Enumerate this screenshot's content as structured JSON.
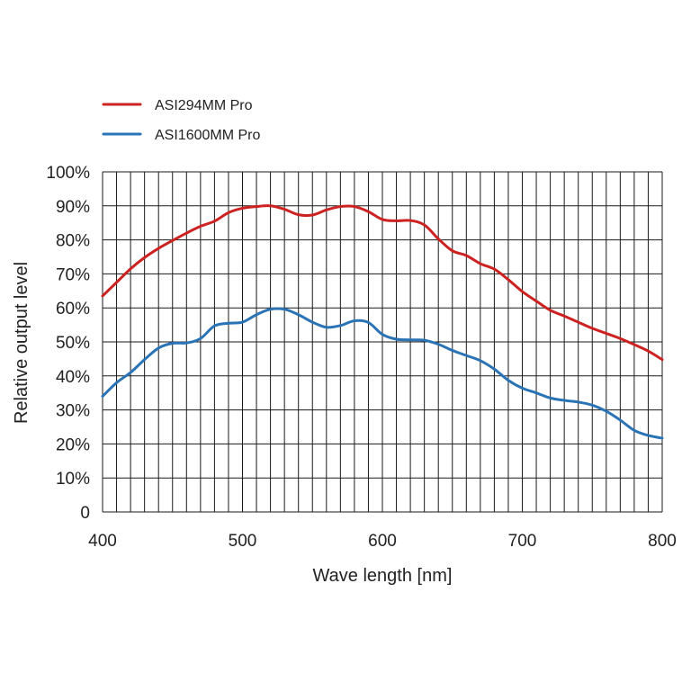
{
  "chart_data": {
    "type": "line",
    "xlabel": "Wave length [nm]",
    "ylabel": "Relative output level",
    "xlim": [
      400,
      800
    ],
    "ylim": [
      0,
      100
    ],
    "x_ticks": [
      "400",
      "500",
      "600",
      "700",
      "800"
    ],
    "y_ticks": [
      "0",
      "10%",
      "20%",
      "30%",
      "40%",
      "50%",
      "60%",
      "70%",
      "80%",
      "90%",
      "100%"
    ],
    "grid": true,
    "legend_position": "top-left",
    "series": [
      {
        "name": "ASI294MM Pro",
        "color": "#cc2222",
        "points": [
          [
            400,
            63.5
          ],
          [
            410,
            67.5
          ],
          [
            420,
            71.5
          ],
          [
            430,
            74.8
          ],
          [
            440,
            77.5
          ],
          [
            450,
            79.8
          ],
          [
            460,
            82
          ],
          [
            470,
            84
          ],
          [
            480,
            85.5
          ],
          [
            490,
            88
          ],
          [
            500,
            89.3
          ],
          [
            510,
            89.8
          ],
          [
            520,
            90
          ],
          [
            530,
            89
          ],
          [
            540,
            87.4
          ],
          [
            550,
            87.3
          ],
          [
            560,
            88.8
          ],
          [
            570,
            89.8
          ],
          [
            580,
            89.8
          ],
          [
            590,
            88.3
          ],
          [
            600,
            86
          ],
          [
            610,
            85.6
          ],
          [
            620,
            85.7
          ],
          [
            630,
            84.4
          ],
          [
            640,
            80.3
          ],
          [
            650,
            76.8
          ],
          [
            660,
            75.4
          ],
          [
            670,
            73
          ],
          [
            680,
            71.4
          ],
          [
            690,
            68.3
          ],
          [
            700,
            64.8
          ],
          [
            710,
            62
          ],
          [
            720,
            59.3
          ],
          [
            730,
            57.6
          ],
          [
            740,
            55.8
          ],
          [
            750,
            54
          ],
          [
            760,
            52.5
          ],
          [
            770,
            51
          ],
          [
            780,
            49.2
          ],
          [
            790,
            47.3
          ],
          [
            800,
            44.8
          ]
        ]
      },
      {
        "name": "ASI1600MM Pro",
        "color": "#2a73b5",
        "points": [
          [
            400,
            34
          ],
          [
            410,
            38
          ],
          [
            420,
            41
          ],
          [
            430,
            44.8
          ],
          [
            440,
            48.2
          ],
          [
            450,
            49.6
          ],
          [
            460,
            49.7
          ],
          [
            470,
            51
          ],
          [
            480,
            54.7
          ],
          [
            490,
            55.5
          ],
          [
            500,
            55.8
          ],
          [
            510,
            58
          ],
          [
            520,
            59.6
          ],
          [
            530,
            59.6
          ],
          [
            540,
            58
          ],
          [
            550,
            55.8
          ],
          [
            560,
            54.3
          ],
          [
            570,
            54.8
          ],
          [
            580,
            56.2
          ],
          [
            590,
            55.7
          ],
          [
            600,
            52.2
          ],
          [
            610,
            50.8
          ],
          [
            620,
            50.6
          ],
          [
            630,
            50.5
          ],
          [
            640,
            49.3
          ],
          [
            650,
            47.5
          ],
          [
            660,
            46
          ],
          [
            670,
            44.5
          ],
          [
            680,
            42
          ],
          [
            690,
            38.7
          ],
          [
            700,
            36.4
          ],
          [
            710,
            35
          ],
          [
            720,
            33.5
          ],
          [
            730,
            32.8
          ],
          [
            740,
            32.3
          ],
          [
            750,
            31.4
          ],
          [
            760,
            29.6
          ],
          [
            770,
            27
          ],
          [
            780,
            24
          ],
          [
            790,
            22.5
          ],
          [
            800,
            21.7
          ]
        ]
      }
    ]
  }
}
